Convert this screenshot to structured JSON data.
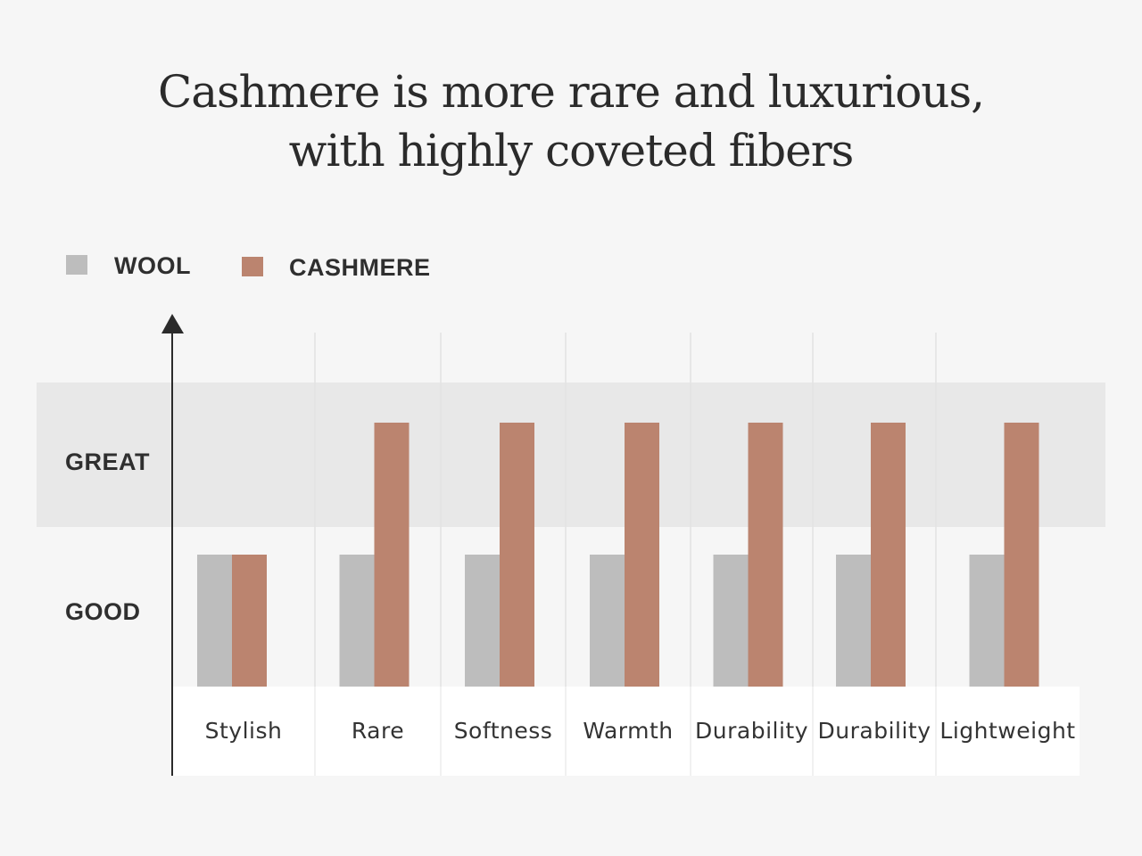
{
  "chart_data": {
    "type": "bar",
    "title_lines": [
      "Cashmere is more rare and luxurious,",
      "with highly coveted fibers"
    ],
    "categories": [
      "Stylish",
      "Rare",
      "Softness",
      "Warmth",
      "Durability",
      "Durability",
      "Lightweight"
    ],
    "y_levels": [
      "GOOD",
      "GREAT"
    ],
    "ylim": [
      0,
      2
    ],
    "series": [
      {
        "name": "WOOL",
        "color": "#bdbdbd",
        "values": [
          1,
          1,
          1,
          1,
          1,
          1,
          1
        ]
      },
      {
        "name": "CASHMERE",
        "color": "#bb846f",
        "values": [
          1,
          2,
          2,
          2,
          2,
          2,
          2
        ]
      }
    ],
    "legend_position": "top-left",
    "grid": true
  }
}
